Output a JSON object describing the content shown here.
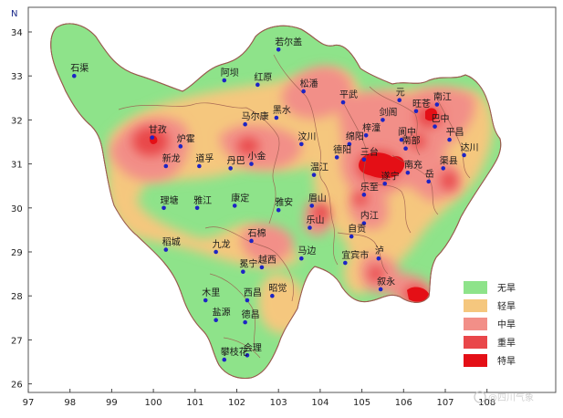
{
  "map": {
    "north_label": "N",
    "y_ticks": [
      "34",
      "33",
      "32",
      "31",
      "30",
      "29",
      "28",
      "27",
      "26"
    ],
    "x_ticks": [
      "97",
      "98",
      "99",
      "100",
      "101",
      "102",
      "103",
      "104",
      "105",
      "106",
      "107",
      "108"
    ],
    "colors": {
      "no_drought": "#8ee38a",
      "light_drought": "#f5c77e",
      "moderate_drought": "#f28f88",
      "severe_drought": "#e9474a",
      "extreme_drought": "#e40f16",
      "boundary": "#9c5b4e",
      "station": "#1d24c4"
    },
    "cities": [
      {
        "name": "若尔盖",
        "lon": 103.0,
        "lat": 33.6
      },
      {
        "name": "石渠",
        "lon": 98.1,
        "lat": 33.0
      },
      {
        "name": "阿坝",
        "lon": 101.7,
        "lat": 32.9
      },
      {
        "name": "红原",
        "lon": 102.5,
        "lat": 32.8
      },
      {
        "name": "松潘",
        "lon": 103.6,
        "lat": 32.65
      },
      {
        "name": "平武",
        "lon": 104.55,
        "lat": 32.4
      },
      {
        "name": "元",
        "lon": 105.9,
        "lat": 32.45
      },
      {
        "name": "旺苍",
        "lon": 106.3,
        "lat": 32.2
      },
      {
        "name": "南江",
        "lon": 106.8,
        "lat": 32.35
      },
      {
        "name": "黑水",
        "lon": 102.95,
        "lat": 32.05
      },
      {
        "name": "马尔康",
        "lon": 102.2,
        "lat": 31.9
      },
      {
        "name": "剑阁",
        "lon": 105.5,
        "lat": 32.0
      },
      {
        "name": "巴中",
        "lon": 106.75,
        "lat": 31.85
      },
      {
        "name": "甘孜",
        "lon": 99.97,
        "lat": 31.6
      },
      {
        "name": "炉霍",
        "lon": 100.65,
        "lat": 31.4
      },
      {
        "name": "汶川",
        "lon": 103.55,
        "lat": 31.45
      },
      {
        "name": "梓潼",
        "lon": 105.1,
        "lat": 31.65
      },
      {
        "name": "平昌",
        "lon": 107.1,
        "lat": 31.55
      },
      {
        "name": "绵阳",
        "lon": 104.7,
        "lat": 31.45
      },
      {
        "name": "阆中",
        "lon": 105.95,
        "lat": 31.55
      },
      {
        "name": "德阳",
        "lon": 104.4,
        "lat": 31.15
      },
      {
        "name": "达川",
        "lon": 107.45,
        "lat": 31.2
      },
      {
        "name": "新龙",
        "lon": 100.3,
        "lat": 30.95
      },
      {
        "name": "道孚",
        "lon": 101.1,
        "lat": 30.95
      },
      {
        "name": "丹巴",
        "lon": 101.85,
        "lat": 30.9
      },
      {
        "name": "小金",
        "lon": 102.35,
        "lat": 31.0
      },
      {
        "name": "三台",
        "lon": 105.05,
        "lat": 31.1
      },
      {
        "name": "南部",
        "lon": 106.05,
        "lat": 31.35
      },
      {
        "name": "渠县",
        "lon": 106.95,
        "lat": 30.9
      },
      {
        "name": "温江",
        "lon": 103.85,
        "lat": 30.75
      },
      {
        "name": "南充",
        "lon": 106.1,
        "lat": 30.8
      },
      {
        "name": "遂宁",
        "lon": 105.55,
        "lat": 30.55
      },
      {
        "name": "岳",
        "lon": 106.6,
        "lat": 30.6
      },
      {
        "name": "理塘",
        "lon": 100.25,
        "lat": 30.0
      },
      {
        "name": "雅江",
        "lon": 101.05,
        "lat": 30.0
      },
      {
        "name": "康定",
        "lon": 101.95,
        "lat": 30.05
      },
      {
        "name": "雅安",
        "lon": 103.0,
        "lat": 29.95
      },
      {
        "name": "眉山",
        "lon": 103.8,
        "lat": 30.05
      },
      {
        "name": "乐至",
        "lon": 105.05,
        "lat": 30.3
      },
      {
        "name": "内江",
        "lon": 105.05,
        "lat": 29.65
      },
      {
        "name": "乐山",
        "lon": 103.75,
        "lat": 29.55
      },
      {
        "name": "稻城",
        "lon": 100.3,
        "lat": 29.05
      },
      {
        "name": "九龙",
        "lon": 101.5,
        "lat": 29.0
      },
      {
        "name": "石棉",
        "lon": 102.35,
        "lat": 29.25
      },
      {
        "name": "自贡",
        "lon": 104.75,
        "lat": 29.35
      },
      {
        "name": "昭觉",
        "lon": 102.85,
        "lat": 28.0
      },
      {
        "name": "宜宾市",
        "lon": 104.6,
        "lat": 28.75
      },
      {
        "name": "马边",
        "lon": 103.55,
        "lat": 28.85
      },
      {
        "name": "泸",
        "lon": 105.4,
        "lat": 28.85
      },
      {
        "name": "冕宁",
        "lon": 102.15,
        "lat": 28.55
      },
      {
        "name": "越西",
        "lon": 102.6,
        "lat": 28.65
      },
      {
        "name": "叙永",
        "lon": 105.45,
        "lat": 28.15
      },
      {
        "name": "木里",
        "lon": 101.25,
        "lat": 27.9
      },
      {
        "name": "西昌",
        "lon": 102.25,
        "lat": 27.9
      },
      {
        "name": "盐源",
        "lon": 101.5,
        "lat": 27.45
      },
      {
        "name": "德昌",
        "lon": 102.2,
        "lat": 27.4
      },
      {
        "name": "会理",
        "lon": 102.25,
        "lat": 26.65
      },
      {
        "name": "攀枝花",
        "lon": 101.7,
        "lat": 26.55
      }
    ],
    "legend": [
      {
        "label": "无旱",
        "color": "#8ee38a"
      },
      {
        "label": "轻旱",
        "color": "#f5c77e"
      },
      {
        "label": "中旱",
        "color": "#f28f88"
      },
      {
        "label": "重旱",
        "color": "#e9474a"
      },
      {
        "label": "特旱",
        "color": "#e40f16"
      }
    ],
    "watermark": "@四川气象"
  }
}
